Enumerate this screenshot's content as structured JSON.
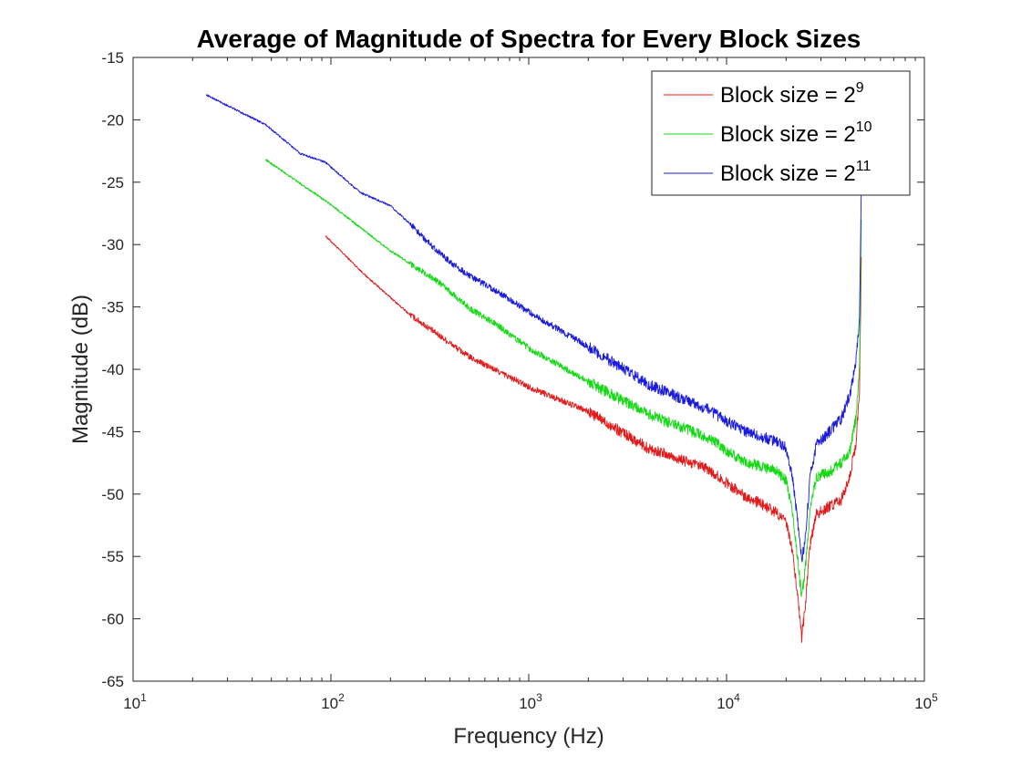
{
  "chart_data": {
    "type": "line",
    "title": "Average of Magnitude of Spectra for Every Block Sizes",
    "xlabel": "Frequency (Hz)",
    "ylabel": "Magnitude (dB)",
    "xscale": "log",
    "xlim": [
      10,
      100000
    ],
    "ylim": [
      -65,
      -15
    ],
    "x_ticks": [
      {
        "value": 10,
        "base": "10",
        "exp": "1"
      },
      {
        "value": 100,
        "base": "10",
        "exp": "2"
      },
      {
        "value": 1000,
        "base": "10",
        "exp": "3"
      },
      {
        "value": 10000,
        "base": "10",
        "exp": "4"
      },
      {
        "value": 100000,
        "base": "10",
        "exp": "5"
      }
    ],
    "y_ticks": [
      {
        "value": -15,
        "label": "-15"
      },
      {
        "value": -20,
        "label": "-20"
      },
      {
        "value": -25,
        "label": "-25"
      },
      {
        "value": -30,
        "label": "-30"
      },
      {
        "value": -35,
        "label": "-35"
      },
      {
        "value": -40,
        "label": "-40"
      },
      {
        "value": -45,
        "label": "-45"
      },
      {
        "value": -50,
        "label": "-50"
      },
      {
        "value": -55,
        "label": "-55"
      },
      {
        "value": -60,
        "label": "-60"
      },
      {
        "value": -65,
        "label": "-65"
      }
    ],
    "grid": false,
    "legend_position": "top-right",
    "series": [
      {
        "name_base": "Block size = 2",
        "name_exp": "9",
        "color": "#e11b1b",
        "points": [
          [
            93.75,
            -29.3
          ],
          [
            150,
            -32.5
          ],
          [
            250,
            -35.6
          ],
          [
            500,
            -39.0
          ],
          [
            1000,
            -41.4
          ],
          [
            2000,
            -43.4
          ],
          [
            4000,
            -46.3
          ],
          [
            8000,
            -48.0
          ],
          [
            12000,
            -50.0
          ],
          [
            18000,
            -51.5
          ],
          [
            20000,
            -52.3
          ],
          [
            21500,
            -54.5
          ],
          [
            23000,
            -58.5
          ],
          [
            24000,
            -61.5
          ],
          [
            25000,
            -59.0
          ],
          [
            26500,
            -54.0
          ],
          [
            28500,
            -51.6
          ],
          [
            33000,
            -51.0
          ],
          [
            38000,
            -50.5
          ],
          [
            42000,
            -48.5
          ],
          [
            45000,
            -46.0
          ],
          [
            47000,
            -42.0
          ],
          [
            48000,
            -31.0
          ]
        ]
      },
      {
        "name_base": "Block size = 2",
        "name_exp": "10",
        "color": "#14d914",
        "points": [
          [
            46.875,
            -23.2
          ],
          [
            100,
            -26.8
          ],
          [
            200,
            -30.5
          ],
          [
            350,
            -33.0
          ],
          [
            500,
            -35.1
          ],
          [
            700,
            -36.5
          ],
          [
            1000,
            -38.3
          ],
          [
            2000,
            -41.0
          ],
          [
            4000,
            -43.6
          ],
          [
            8000,
            -45.5
          ],
          [
            12000,
            -47.3
          ],
          [
            18000,
            -48.2
          ],
          [
            20000,
            -48.9
          ],
          [
            21500,
            -51.5
          ],
          [
            23000,
            -55.5
          ],
          [
            24000,
            -58.3
          ],
          [
            25000,
            -56.0
          ],
          [
            26500,
            -51.0
          ],
          [
            28500,
            -48.6
          ],
          [
            33000,
            -48.3
          ],
          [
            38000,
            -47.5
          ],
          [
            42000,
            -46.5
          ],
          [
            45000,
            -44.0
          ],
          [
            47000,
            -40.0
          ],
          [
            48000,
            -28.0
          ]
        ]
      },
      {
        "name_base": "Block size = 2",
        "name_exp": "11",
        "color": "#1a1adb",
        "points": [
          [
            23.4375,
            -18.0
          ],
          [
            46.875,
            -20.4
          ],
          [
            70,
            -22.7
          ],
          [
            93.75,
            -23.4
          ],
          [
            140,
            -25.8
          ],
          [
            200,
            -26.9
          ],
          [
            250,
            -28.3
          ],
          [
            300,
            -29.6
          ],
          [
            400,
            -31.4
          ],
          [
            500,
            -32.5
          ],
          [
            700,
            -33.8
          ],
          [
            1000,
            -35.4
          ],
          [
            2000,
            -38.2
          ],
          [
            4000,
            -41.2
          ],
          [
            8000,
            -43.2
          ],
          [
            12000,
            -44.9
          ],
          [
            18000,
            -45.8
          ],
          [
            20000,
            -46.3
          ],
          [
            21500,
            -48.5
          ],
          [
            23000,
            -52.5
          ],
          [
            24000,
            -55.4
          ],
          [
            25000,
            -53.5
          ],
          [
            26500,
            -48.5
          ],
          [
            28500,
            -46.0
          ],
          [
            33000,
            -45.0
          ],
          [
            38000,
            -44.0
          ],
          [
            42000,
            -42.0
          ],
          [
            45000,
            -39.5
          ],
          [
            47000,
            -36.0
          ],
          [
            48000,
            -25.5
          ]
        ]
      }
    ]
  }
}
